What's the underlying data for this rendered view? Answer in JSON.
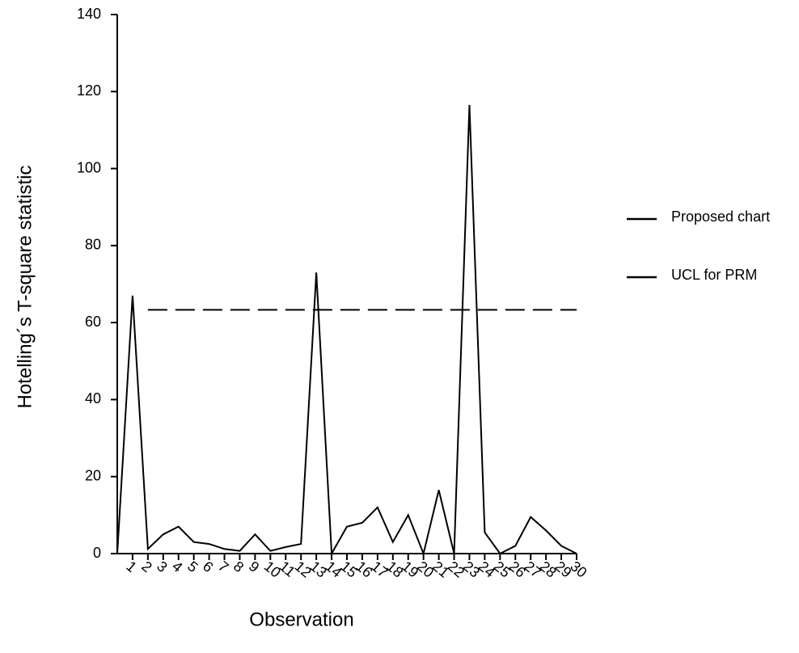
{
  "chart_data": {
    "type": "line",
    "x_label": "Observation",
    "y_label": "Hotelling´s T-square statistic",
    "xlim": [
      0,
      30
    ],
    "xticks": [
      1,
      2,
      3,
      4,
      5,
      6,
      7,
      8,
      9,
      10,
      11,
      12,
      13,
      14,
      15,
      16,
      17,
      18,
      19,
      20,
      21,
      22,
      23,
      24,
      25,
      26,
      27,
      28,
      29,
      30
    ],
    "ylim": [
      0,
      140
    ],
    "yticks": [
      0,
      20,
      40,
      60,
      80,
      100,
      120,
      140
    ],
    "legend": "right",
    "series": [
      {
        "name": "Proposed chart",
        "color": "#000000",
        "dashed": false,
        "x": [
          0,
          1,
          2,
          3,
          4,
          5,
          6,
          7,
          8,
          9,
          10,
          11,
          12,
          13,
          14,
          15,
          16,
          17,
          18,
          19,
          20,
          21,
          22,
          23,
          24,
          25,
          26,
          27,
          28,
          29,
          30
        ],
        "values": [
          0,
          67,
          1.2,
          5,
          7,
          3,
          2.5,
          1.2,
          0.7,
          5,
          0.7,
          1.7,
          2.5,
          73,
          0,
          7,
          8,
          12,
          3,
          10,
          0,
          16.5,
          0,
          116.5,
          5.5,
          0,
          2,
          9.5,
          6,
          2,
          0
        ]
      },
      {
        "name": "UCL for PRM",
        "color": "#000000",
        "dashed": true,
        "x": [
          2,
          30
        ],
        "values": [
          63.3,
          63.3
        ]
      }
    ]
  }
}
